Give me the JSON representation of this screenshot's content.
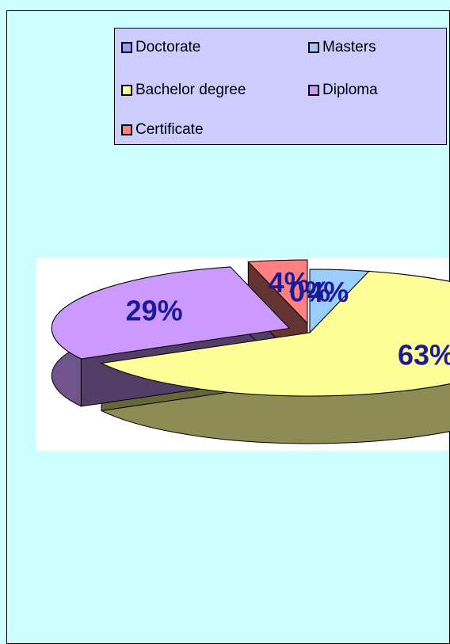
{
  "chart_data": {
    "type": "pie",
    "title": "",
    "legend_position": "top-right",
    "slices": [
      {
        "name": "Doctorate",
        "value": 0,
        "label": "0%",
        "color": "#9999ff"
      },
      {
        "name": "Masters",
        "value": 4,
        "label": "4%",
        "color": "#99ccff"
      },
      {
        "name": "Bachelor degree",
        "value": 63,
        "label": "63%",
        "color": "#ffff99"
      },
      {
        "name": "Diploma",
        "value": 29,
        "label": "29%",
        "color": "#cc99ff"
      },
      {
        "name": "Certificate",
        "value": 4,
        "label": "4%",
        "color": "#ff8080"
      }
    ],
    "label_color": "#1a1a9a"
  }
}
